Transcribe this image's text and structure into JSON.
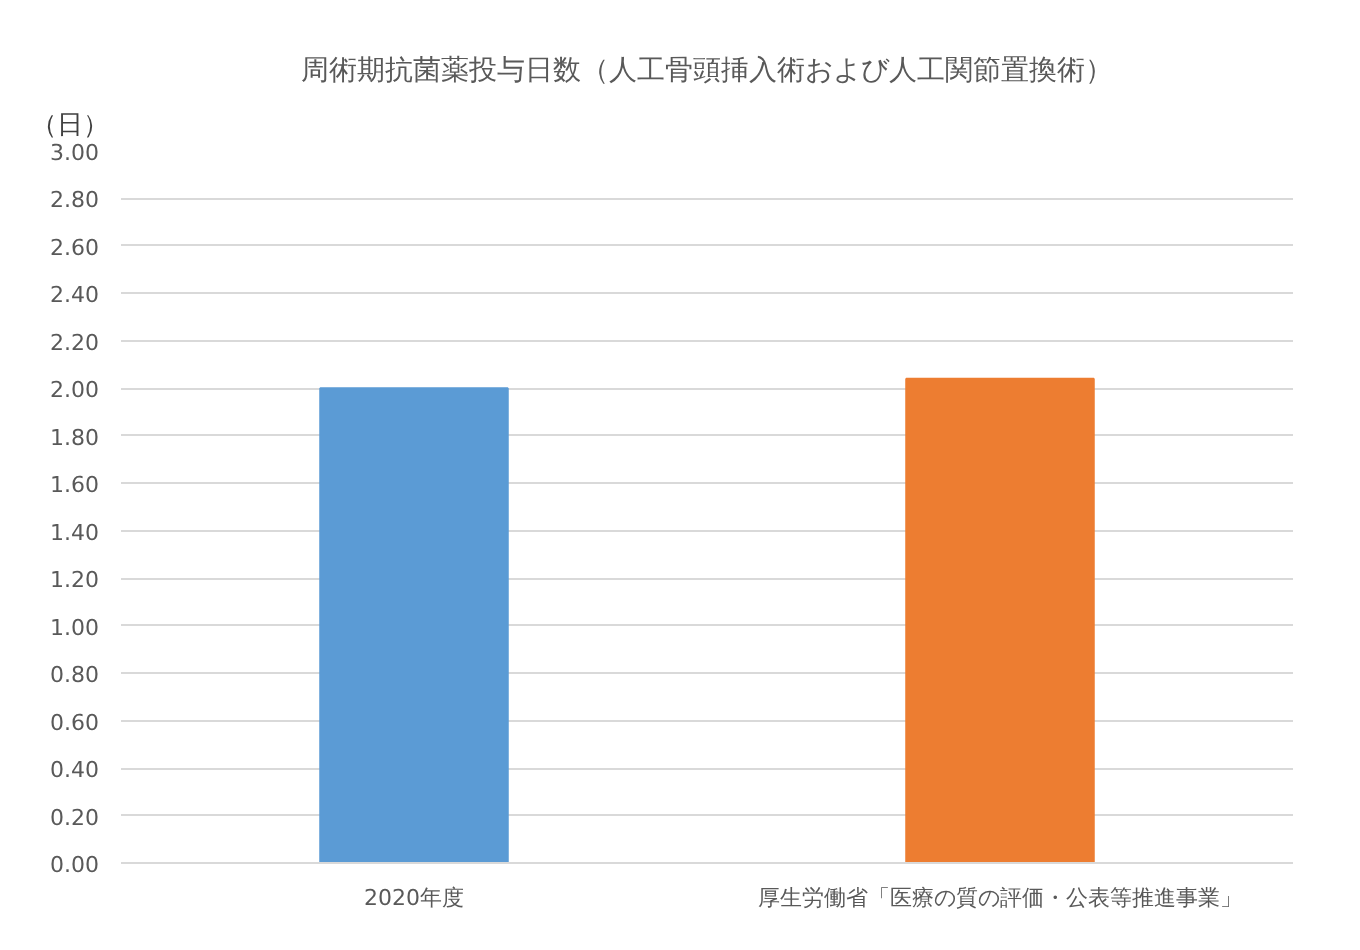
{
  "chart_data": {
    "type": "bar",
    "title": "周術期抗菌薬投与日数（人工骨頭挿入術および人工関節置換術）",
    "ylabel": "（日）",
    "categories": [
      "2020年度",
      "厚生労働省「医療の質の評価・公表等推進事業」"
    ],
    "values": [
      2.0,
      2.04
    ],
    "colors": [
      "#5b9bd5",
      "#ed7d31"
    ],
    "ylim": [
      0,
      3
    ],
    "yticks": [
      {
        "value": 0,
        "label": "0.00"
      },
      {
        "value": 0.2,
        "label": "0.20"
      },
      {
        "value": 0.4,
        "label": "0.40"
      },
      {
        "value": 0.6,
        "label": "0.60"
      },
      {
        "value": 0.8,
        "label": "0.80"
      },
      {
        "value": 1.0,
        "label": "1.00"
      },
      {
        "value": 1.2,
        "label": "1.20"
      },
      {
        "value": 1.4,
        "label": "1.40"
      },
      {
        "value": 1.6,
        "label": "1.60"
      },
      {
        "value": 1.8,
        "label": "1.80"
      },
      {
        "value": 2.0,
        "label": "2.00"
      },
      {
        "value": 2.2,
        "label": "2.20"
      },
      {
        "value": 2.4,
        "label": "2.40"
      },
      {
        "value": 2.6,
        "label": "2.60"
      },
      {
        "value": 2.8,
        "label": "2.80"
      },
      {
        "value": 3.0,
        "label": "3.00"
      }
    ],
    "grid": "y"
  }
}
